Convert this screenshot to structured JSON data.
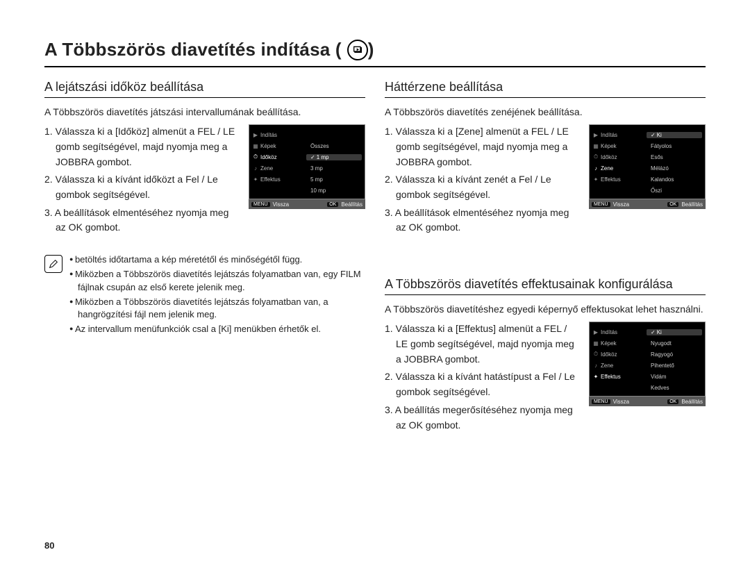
{
  "pageNumber": "80",
  "title": "A Többszörös diavetítés indítása (",
  "titleClose": ")",
  "sections": {
    "interval": {
      "heading": "A lejátszási időköz beállítása",
      "intro": "A Többszörös diavetítés játszási intervallumának beállítása.",
      "steps": [
        "1. Válassza ki a [Időköz] almenüt a FEL / LE gomb segítségével, majd nyomja meg a JOBBRA gombot.",
        "2. Válassza ki a kívánt időközt a Fel / Le gombok segítségével.",
        "3. A beállítások elmentéséhez nyomja meg az OK gombot."
      ],
      "screen": {
        "leftItems": [
          "Indítás",
          "Képek",
          "Időköz",
          "Zene",
          "Effektus"
        ],
        "leftSelectedIndex": 2,
        "rightItems": [
          "",
          "Összes",
          "1 mp",
          "3 mp",
          "5 mp",
          "10 mp"
        ],
        "rightSelectedIndex": 2,
        "footLeftTag": "MENU",
        "footLeft": "Vissza",
        "footRightTag": "OK",
        "footRight": "Beállítás"
      },
      "notes": [
        "betöltés időtartama a kép méretétől és minőségétől függ.",
        "Miközben a Többszörös diavetítés lejátszás folyamatban van, egy FILM fájlnak csupán az első kerete jelenik meg.",
        "Miközben a Többszörös diavetítés lejátszás folyamatban van, a hangrögzítési fájl nem jelenik meg.",
        "Az intervallum menüfunkciók csal a [Ki] menükben érhetők el."
      ]
    },
    "music": {
      "heading": "Háttérzene beállítása",
      "intro": "A Többszörös diavetítés zenéjének beállítása.",
      "steps": [
        "1. Válassza ki a [Zene] almenüt a FEL / LE gomb segítségével, majd nyomja meg a JOBBRA gombot.",
        "2. Válassza ki a kívánt zenét a Fel / Le gombok segítségével.",
        "3. A beállítások elmentéséhez nyomja meg az OK gombot."
      ],
      "screen": {
        "leftItems": [
          "Indítás",
          "Képek",
          "Időköz",
          "Zene",
          "Effektus"
        ],
        "leftSelectedIndex": 3,
        "rightItems": [
          "Ki",
          "Fátyolos",
          "Esős",
          "Mélázó",
          "Kalandos",
          "Őszi"
        ],
        "rightSelectedIndex": 0,
        "footLeftTag": "MENU",
        "footLeft": "Vissza",
        "footRightTag": "OK",
        "footRight": "Beállítás"
      }
    },
    "effect": {
      "heading": "A Többszörös diavetítés effektusainak konfigurálása",
      "intro": "A Többszörös diavetítéshez egyedi képernyő effektusokat lehet használni.",
      "steps": [
        "1. Válassza ki a [Effektus] almenüt a FEL / LE gomb segítségével, majd nyomja meg a JOBBRA gombot.",
        "2. Válassza ki a kívánt hatástípust a Fel / Le gombok segítségével.",
        "3. A beállítás megerősítéséhez nyomja meg az OK gombot."
      ],
      "screen": {
        "leftItems": [
          "Indítás",
          "Képek",
          "Időköz",
          "Zene",
          "Effektus"
        ],
        "leftSelectedIndex": 4,
        "rightItems": [
          "Ki",
          "Nyugodt",
          "Ragyogó",
          "Pihentető",
          "Vidám",
          "Kedves"
        ],
        "rightSelectedIndex": 0,
        "footLeftTag": "MENU",
        "footLeft": "Vissza",
        "footRightTag": "OK",
        "footRight": "Beállítás"
      }
    }
  }
}
